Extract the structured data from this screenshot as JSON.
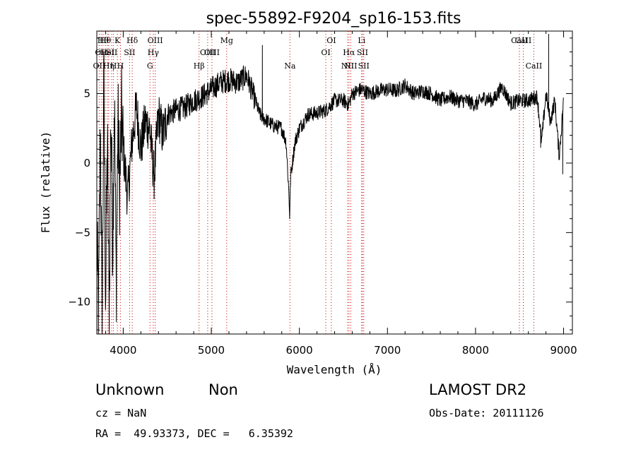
{
  "chart_data": {
    "type": "line",
    "title": "spec-55892-F9204_sp16-153.fits",
    "xlabel": "Wavelength (Å)",
    "ylabel": "Flux (relative)",
    "xlim": [
      3700,
      9100
    ],
    "ylim": [
      -12.3,
      9.5
    ],
    "x_ticks": [
      4000,
      5000,
      6000,
      7000,
      8000,
      9000
    ],
    "y_ticks": [
      -10,
      -5,
      0,
      5
    ],
    "line_color": "#000000",
    "marker_color": "#cc0000",
    "spectrum_control_points": [
      [
        3700,
        -5.5
      ],
      [
        3720,
        -11
      ],
      [
        3740,
        3
      ],
      [
        3760,
        -12
      ],
      [
        3780,
        6
      ],
      [
        3800,
        -10
      ],
      [
        3820,
        2
      ],
      [
        3840,
        -11.5
      ],
      [
        3860,
        4
      ],
      [
        3880,
        -6
      ],
      [
        3900,
        5
      ],
      [
        3920,
        -9
      ],
      [
        3940,
        3
      ],
      [
        3960,
        -2
      ],
      [
        3980,
        3.5
      ],
      [
        4000,
        1
      ],
      [
        4050,
        -2.5
      ],
      [
        4100,
        1.5
      ],
      [
        4150,
        4
      ],
      [
        4200,
        1
      ],
      [
        4250,
        3
      ],
      [
        4300,
        2.5
      ],
      [
        4350,
        -1
      ],
      [
        4400,
        3.5
      ],
      [
        4450,
        2
      ],
      [
        4500,
        3.5
      ],
      [
        4600,
        3.8
      ],
      [
        4700,
        4
      ],
      [
        4800,
        4.5
      ],
      [
        4900,
        4.8
      ],
      [
        5000,
        5.3
      ],
      [
        5100,
        5.8
      ],
      [
        5200,
        6
      ],
      [
        5300,
        5.8
      ],
      [
        5400,
        6.3
      ],
      [
        5500,
        4.5
      ],
      [
        5550,
        3.5
      ],
      [
        5600,
        3.2
      ],
      [
        5700,
        2.7
      ],
      [
        5800,
        2.5
      ],
      [
        5850,
        1.5
      ],
      [
        5880,
        -2
      ],
      [
        5890,
        -3.8
      ],
      [
        5900,
        -1
      ],
      [
        5950,
        1.5
      ],
      [
        6000,
        2.5
      ],
      [
        6100,
        3.5
      ],
      [
        6200,
        3.6
      ],
      [
        6300,
        3.8
      ],
      [
        6400,
        4.5
      ],
      [
        6500,
        4.5
      ],
      [
        6560,
        4.2
      ],
      [
        6600,
        5
      ],
      [
        6700,
        5.3
      ],
      [
        6800,
        5
      ],
      [
        6900,
        5.2
      ],
      [
        7000,
        5.3
      ],
      [
        7100,
        5.2
      ],
      [
        7200,
        5.6
      ],
      [
        7300,
        5
      ],
      [
        7400,
        5.2
      ],
      [
        7500,
        5
      ],
      [
        7600,
        4.5
      ],
      [
        7700,
        4.8
      ],
      [
        7800,
        4.5
      ],
      [
        7900,
        4.5
      ],
      [
        8000,
        4.2
      ],
      [
        8100,
        4.7
      ],
      [
        8200,
        4.5
      ],
      [
        8300,
        5.5
      ],
      [
        8400,
        4.3
      ],
      [
        8500,
        4.5
      ],
      [
        8600,
        4.5
      ],
      [
        8700,
        4.8
      ],
      [
        8750,
        1.5
      ],
      [
        8800,
        5
      ],
      [
        8850,
        3
      ],
      [
        8900,
        4.5
      ],
      [
        8950,
        0.5
      ],
      [
        9000,
        4.5
      ]
    ],
    "spectrum_spikes": [
      [
        5580,
        8.5
      ],
      [
        8830,
        9.3
      ],
      [
        8990,
        -0.8
      ],
      [
        8740,
        1.1
      ]
    ],
    "line_markers": [
      {
        "wl": 3727,
        "label": "OII",
        "row": 2
      },
      {
        "wl": 3750,
        "label": "OII",
        "row": 1
      },
      {
        "wl": 3771,
        "label": "Hθ",
        "row": 0
      },
      {
        "wl": 3797,
        "label": "Hθ",
        "row": 0
      },
      {
        "wl": 3820,
        "label": "HeI",
        "row": 1
      },
      {
        "wl": 3835,
        "label": "Hη",
        "row": 2
      },
      {
        "wl": 3869,
        "label": "SII",
        "row": 1
      },
      {
        "wl": 3889,
        "label": "H",
        "row": 2
      },
      {
        "wl": 3934,
        "label": "K",
        "row": 0
      },
      {
        "wl": 3968,
        "label": "H",
        "row": 2
      },
      {
        "wl": 4072,
        "label": "SII",
        "row": 1
      },
      {
        "wl": 4102,
        "label": "Hδ",
        "row": 0
      },
      {
        "wl": 4304,
        "label": "G",
        "row": 2
      },
      {
        "wl": 4341,
        "label": "Hγ",
        "row": 1
      },
      {
        "wl": 4363,
        "label": "OIII",
        "row": 0
      },
      {
        "wl": 4861,
        "label": "Hβ",
        "row": 2
      },
      {
        "wl": 4959,
        "label": "OIII",
        "row": 1
      },
      {
        "wl": 5007,
        "label": "OIII",
        "row": 1
      },
      {
        "wl": 5175,
        "label": "Mg",
        "row": 0
      },
      {
        "wl": 5893,
        "label": "Na",
        "row": 2
      },
      {
        "wl": 6300,
        "label": "OI",
        "row": 1
      },
      {
        "wl": 6363,
        "label": "OI",
        "row": 0
      },
      {
        "wl": 6548,
        "label": "NII",
        "row": 2
      },
      {
        "wl": 6563,
        "label": "Hα",
        "row": 1
      },
      {
        "wl": 6583,
        "label": "NII",
        "row": 2
      },
      {
        "wl": 6707,
        "label": "Li",
        "row": 0
      },
      {
        "wl": 6716,
        "label": "SII",
        "row": 1
      },
      {
        "wl": 6731,
        "label": "SII",
        "row": 2
      },
      {
        "wl": 8498,
        "label": "CaII",
        "row": 0
      },
      {
        "wl": 8542,
        "label": "CaII",
        "row": 0
      },
      {
        "wl": 8662,
        "label": "CaII",
        "row": 2
      }
    ]
  },
  "info": {
    "class": "Unknown",
    "subclass": "Non",
    "survey": "LAMOST DR2",
    "cz": "cz = NaN",
    "obs_date": "Obs-Date: 20111126",
    "coords": "RA =  49.93373, DEC =   6.35392"
  }
}
